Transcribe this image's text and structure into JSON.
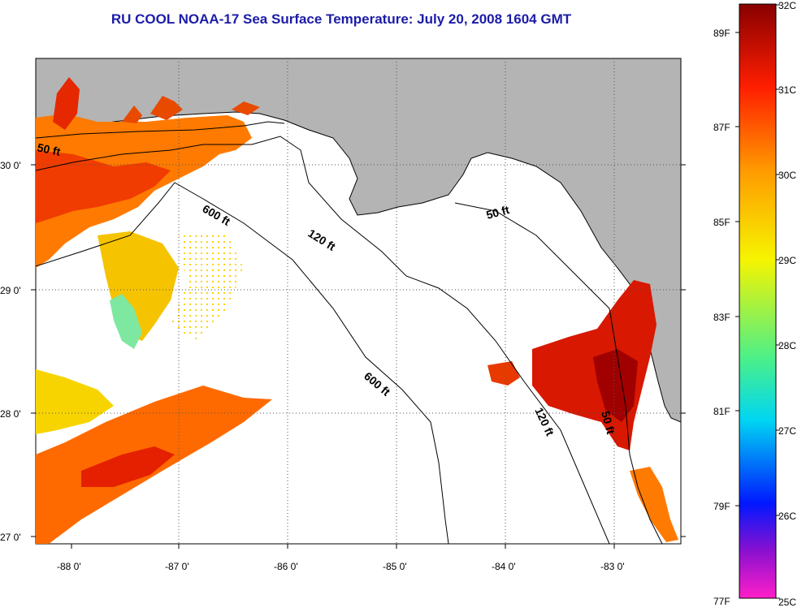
{
  "title": "RU COOL  NOAA-17  Sea Surface Temperature:  July 20, 2008 1604 GMT",
  "lat_labels": [
    "30 0'",
    "29 0'",
    "28 0'",
    "27 0'"
  ],
  "lon_labels": [
    "-88 0'",
    "-87 0'",
    "-86 0'",
    "-85 0'",
    "-84 0'",
    "-83 0'"
  ],
  "contour_labels": {
    "c50_west": "50 ft",
    "c600_a": "600 ft",
    "c120_a": "120 ft",
    "c50_east": "50 ft",
    "c600_b": "600 ft",
    "c120_b": "120 ft",
    "c50_south": "50 ft"
  },
  "colorbar": {
    "celsius": [
      "32C",
      "31C",
      "30C",
      "29C",
      "28C",
      "27C",
      "26C",
      "25C"
    ],
    "fahrenheit": [
      "89F",
      "87F",
      "85F",
      "83F",
      "81F",
      "79F",
      "77F"
    ],
    "colors": [
      "#ff1ec8",
      "#4b00d2",
      "#0012ff",
      "#00cdf5",
      "#4bf08c",
      "#f7f700",
      "#ff9a00",
      "#ff2200",
      "#8c0000"
    ]
  },
  "colors": {
    "land": "#b4b4b4",
    "title": "#1c1ca8"
  }
}
